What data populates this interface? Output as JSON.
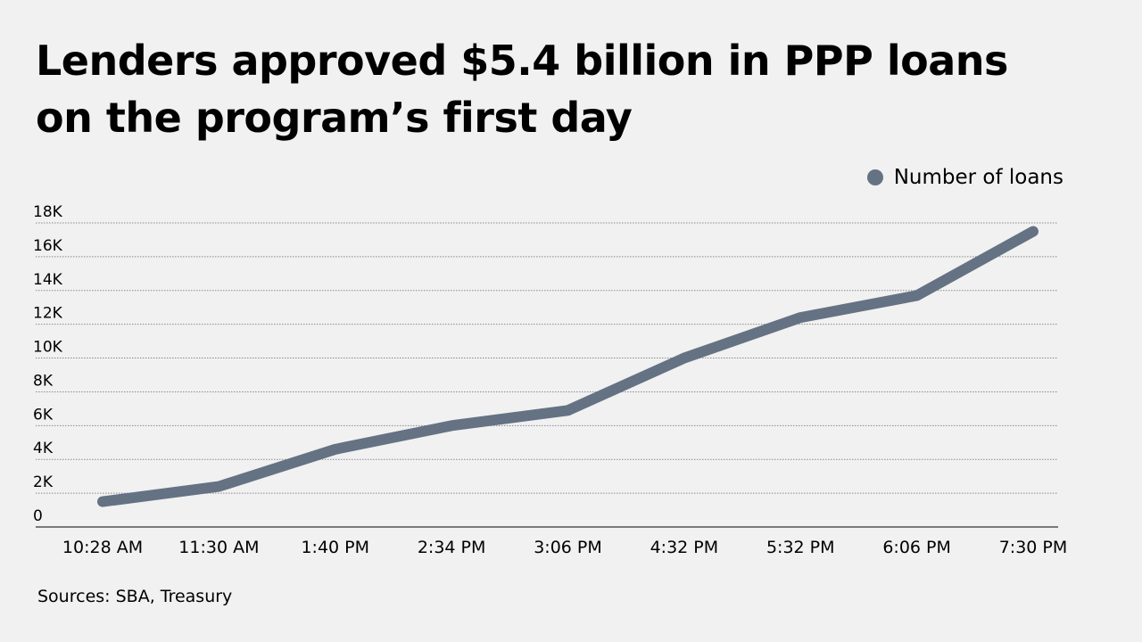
{
  "title_lines": [
    "Lenders approved $5.4 billion in PPP loans",
    "on the program’s first day"
  ],
  "source": "Sources: SBA, Treasury",
  "colors": {
    "background": "#f0f1f0",
    "series": "#647284",
    "grid": "#8a8a8a",
    "axis": "#333333"
  },
  "chart_data": {
    "type": "line",
    "title": "Lenders approved $5.4 billion in PPP loans on the program’s first day",
    "xlabel": "",
    "ylabel": "",
    "categories": [
      "10:28 AM",
      "11:30 AM",
      "1:40 PM",
      "2:34 PM",
      "3:06 PM",
      "4:32 PM",
      "5:32 PM",
      "6:06 PM",
      "7:30 PM"
    ],
    "series": [
      {
        "name": "Number of loans",
        "values": [
          1500,
          2400,
          4600,
          6000,
          6900,
          10000,
          12400,
          13700,
          17500
        ]
      }
    ],
    "ylim": [
      0,
      18000
    ],
    "yticks": [
      0,
      2000,
      4000,
      6000,
      8000,
      10000,
      12000,
      14000,
      16000,
      18000
    ],
    "ytick_labels": [
      "0",
      "2K",
      "4K",
      "6K",
      "8K",
      "10K",
      "12K",
      "14K",
      "16K",
      "18K"
    ],
    "grid": true,
    "legend": {
      "position": "top-right",
      "entries": [
        "Number of loans"
      ]
    }
  }
}
